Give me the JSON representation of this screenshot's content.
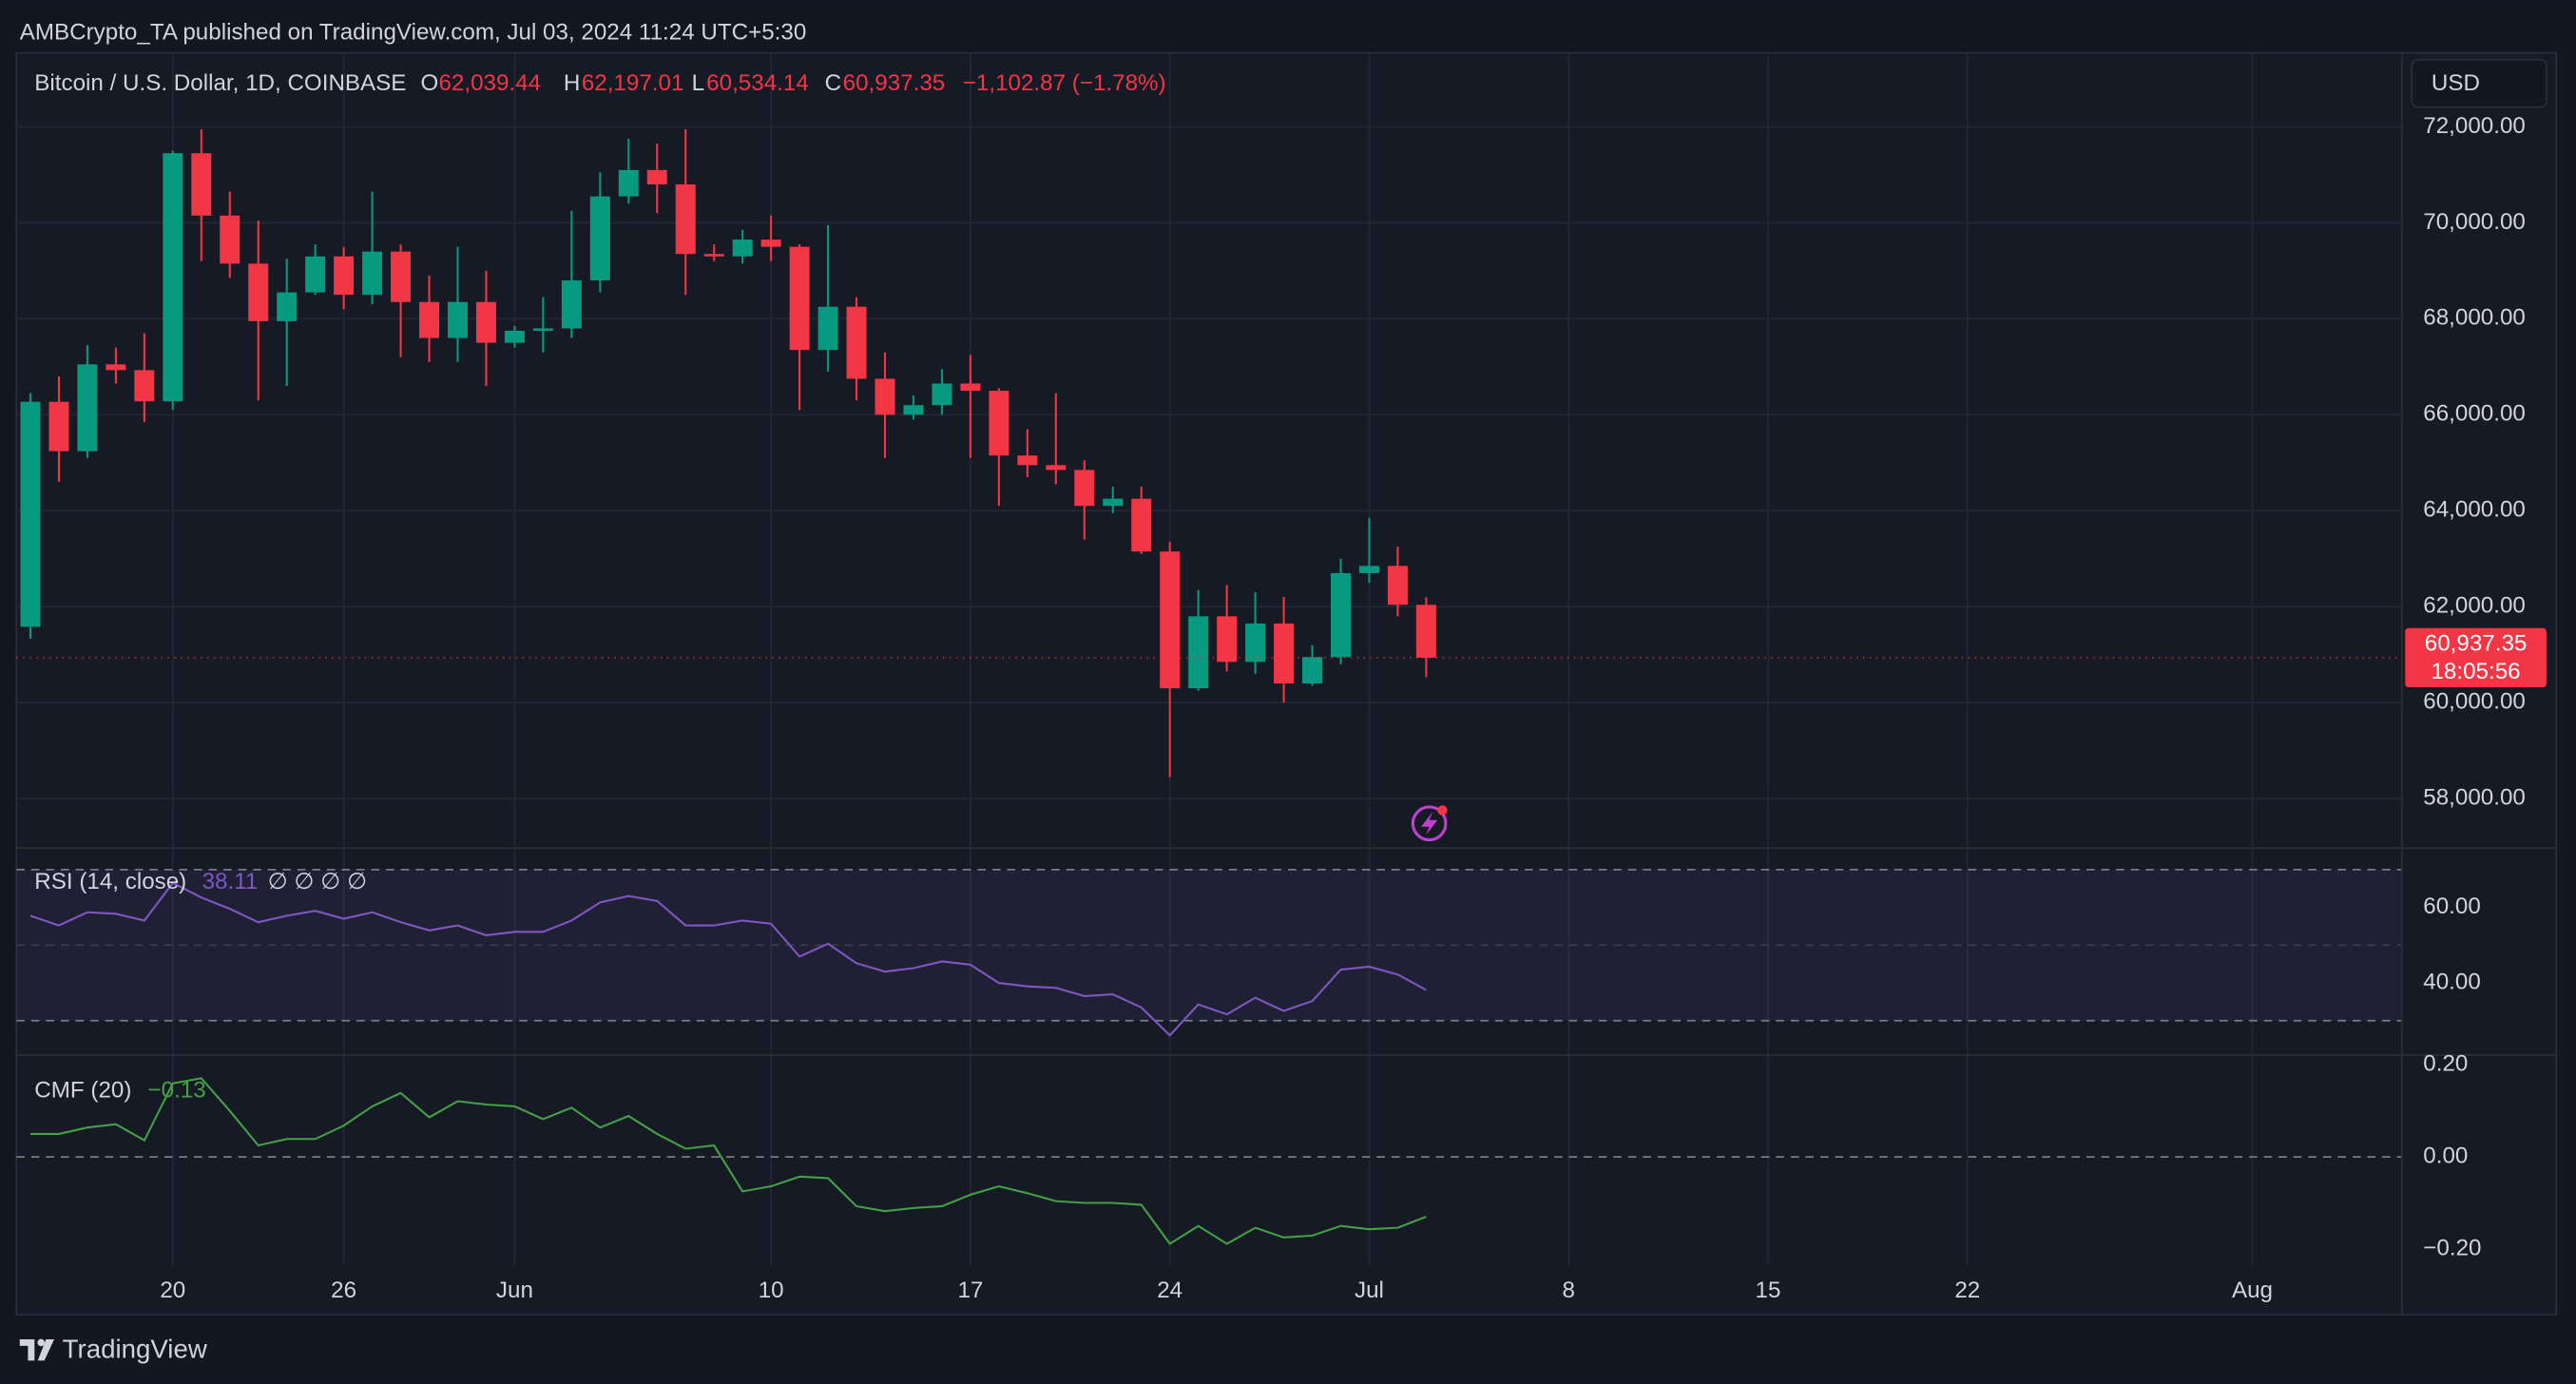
{
  "publisher": "AMBCrypto_TA published on TradingView.com, Jul 03, 2024 11:24 UTC+5:30",
  "brand": "TradingView",
  "currency": "USD",
  "last_price_label": "60,937.35",
  "countdown": "18:05:56",
  "chart_data": [
    {
      "type": "candlestick",
      "title": "Bitcoin / U.S. Dollar, 1D, COINBASE",
      "ohlc_legend": [
        {
          "label": "O",
          "value": "62,039.44"
        },
        {
          "label": "H",
          "value": "62,197.01"
        },
        {
          "label": "L",
          "value": "60,534.14"
        },
        {
          "label": "C",
          "value": "60,937.35"
        }
      ],
      "change": "−1,102.87 (−1.78%)",
      "up_color": "#089981",
      "down_color": "#f23645",
      "x": [
        "2024-05-15",
        "2024-05-16",
        "2024-05-17",
        "2024-05-18",
        "2024-05-19",
        "2024-05-20",
        "2024-05-21",
        "2024-05-22",
        "2024-05-23",
        "2024-05-24",
        "2024-05-25",
        "2024-05-26",
        "2024-05-27",
        "2024-05-28",
        "2024-05-29",
        "2024-05-30",
        "2024-05-31",
        "2024-06-01",
        "2024-06-02",
        "2024-06-03",
        "2024-06-04",
        "2024-06-05",
        "2024-06-06",
        "2024-06-07",
        "2024-06-08",
        "2024-06-09",
        "2024-06-10",
        "2024-06-11",
        "2024-06-12",
        "2024-06-13",
        "2024-06-14",
        "2024-06-15",
        "2024-06-16",
        "2024-06-17",
        "2024-06-18",
        "2024-06-19",
        "2024-06-20",
        "2024-06-21",
        "2024-06-22",
        "2024-06-23",
        "2024-06-24",
        "2024-06-25",
        "2024-06-26",
        "2024-06-27",
        "2024-06-28",
        "2024-06-29",
        "2024-06-30",
        "2024-07-01",
        "2024-07-02",
        "2024-07-03"
      ],
      "open": [
        61580,
        66270,
        65240,
        67050,
        66930,
        66280,
        71450,
        70150,
        69150,
        67950,
        68550,
        69300,
        68500,
        69400,
        68350,
        67600,
        68350,
        67500,
        67750,
        67800,
        68800,
        70550,
        71100,
        70800,
        69350,
        69300,
        69650,
        69500,
        67350,
        68250,
        66750,
        66000,
        66200,
        66650,
        66500,
        65150,
        64950,
        64850,
        64100,
        64250,
        63150,
        60300,
        61800,
        60850,
        61650,
        60400,
        60950,
        62700,
        62850,
        62039.44
      ],
      "high": [
        66450,
        66800,
        67450,
        67400,
        67700,
        71500,
        71950,
        70650,
        70050,
        69250,
        69550,
        69500,
        70650,
        69550,
        68900,
        69500,
        69000,
        67850,
        68450,
        70250,
        71050,
        71750,
        71650,
        71950,
        69550,
        69850,
        70150,
        69550,
        69950,
        68450,
        67300,
        66400,
        66950,
        67250,
        66550,
        65700,
        66450,
        65050,
        64500,
        64500,
        63350,
        62350,
        62450,
        62300,
        62200,
        61200,
        63000,
        63850,
        63250,
        62197.01
      ],
      "low": [
        61330,
        64600,
        65100,
        66650,
        65850,
        66100,
        69200,
        68850,
        66300,
        66600,
        68500,
        68200,
        68300,
        67200,
        67100,
        67100,
        66600,
        67400,
        67300,
        67600,
        68550,
        70400,
        70200,
        68500,
        69200,
        69150,
        69200,
        66100,
        66900,
        66300,
        65100,
        65900,
        66000,
        65100,
        64100,
        64700,
        64550,
        63400,
        63950,
        63100,
        58450,
        60250,
        60650,
        60600,
        60000,
        60350,
        60800,
        62500,
        61800,
        60534.14
      ],
      "close": [
        66270,
        65240,
        67050,
        66930,
        66280,
        71450,
        70150,
        69150,
        67950,
        68550,
        69300,
        68500,
        69400,
        68350,
        67600,
        68350,
        67500,
        67750,
        67800,
        68800,
        70550,
        71100,
        70800,
        69350,
        69300,
        69650,
        69500,
        67350,
        68250,
        66750,
        66000,
        66200,
        66650,
        66500,
        65150,
        64950,
        64850,
        64100,
        64250,
        63150,
        60300,
        61800,
        60850,
        61650,
        60400,
        60950,
        62700,
        62850,
        62039.44,
        60937.35
      ],
      "xlim": [
        "2024-05-14T15:00:00Z",
        "2024-08-06T06:00:00Z"
      ],
      "xticks": [
        {
          "value": "2024-05-20",
          "label": "20"
        },
        {
          "value": "2024-05-26",
          "label": "26"
        },
        {
          "value": "2024-06-01",
          "label": "Jun"
        },
        {
          "value": "2024-06-10",
          "label": "10"
        },
        {
          "value": "2024-06-17",
          "label": "17"
        },
        {
          "value": "2024-06-24",
          "label": "24"
        },
        {
          "value": "2024-07-01",
          "label": "Jul"
        },
        {
          "value": "2024-07-08",
          "label": "8"
        },
        {
          "value": "2024-07-15",
          "label": "15"
        },
        {
          "value": "2024-07-22",
          "label": "22"
        },
        {
          "value": "2024-08-01",
          "label": "Aug"
        }
      ],
      "ylim": [
        56970,
        73540
      ],
      "yticks": [
        {
          "value": 58000,
          "label": "58,000.00"
        },
        {
          "value": 60000,
          "label": "60,000.00"
        },
        {
          "value": 62000,
          "label": "62,000.00"
        },
        {
          "value": 64000,
          "label": "64,000.00"
        },
        {
          "value": 66000,
          "label": "66,000.00"
        },
        {
          "value": 68000,
          "label": "68,000.00"
        },
        {
          "value": 70000,
          "label": "70,000.00"
        },
        {
          "value": 72000,
          "label": "72,000.00"
        }
      ],
      "grid": true
    },
    {
      "type": "line",
      "series": [
        {
          "name": "RSI (14, close)",
          "color": "#7e57c2",
          "last_label": "38.11",
          "values": [
            57.8,
            55.2,
            58.7,
            58.3,
            56.5,
            66.5,
            62.6,
            59.6,
            56.1,
            57.8,
            59.1,
            57,
            58.7,
            56.1,
            53.9,
            55.2,
            52.6,
            53.5,
            53.5,
            56.5,
            61.3,
            63,
            61.7,
            55.2,
            55.2,
            56.5,
            55.7,
            47,
            50.4,
            45.2,
            43,
            43.9,
            45.7,
            44.8,
            40,
            39.1,
            38.7,
            36.5,
            37,
            33.5,
            26.1,
            34.3,
            31.7,
            36.1,
            32.6,
            35.2,
            43.5,
            44.3,
            42.2,
            38.11
          ]
        }
      ],
      "flags": "∅ ∅ ∅ ∅",
      "levels": [
        70,
        50,
        30
      ],
      "ylim": [
        20.9,
        75.7
      ],
      "yticks": [
        {
          "value": 40,
          "label": "40.00"
        },
        {
          "value": 60,
          "label": "60.00"
        }
      ]
    },
    {
      "type": "line",
      "series": [
        {
          "name": "CMF (20)",
          "color": "#43a047",
          "last_label": "−0.13",
          "values": [
            0.05,
            0.05,
            0.064,
            0.071,
            0.036,
            0.16,
            0.171,
            0.1,
            0.025,
            0.039,
            0.039,
            0.068,
            0.11,
            0.139,
            0.086,
            0.121,
            0.114,
            0.11,
            0.082,
            0.107,
            0.064,
            0.089,
            0.05,
            0.018,
            0.025,
            -0.075,
            -0.064,
            -0.043,
            -0.046,
            -0.107,
            -0.118,
            -0.111,
            -0.107,
            -0.082,
            -0.064,
            -0.079,
            -0.096,
            -0.1,
            -0.1,
            -0.104,
            -0.189,
            -0.15,
            -0.189,
            -0.154,
            -0.175,
            -0.171,
            -0.15,
            -0.157,
            -0.154,
            -0.13
          ]
        }
      ],
      "levels": [
        0
      ],
      "ylim": [
        -0.2357,
        0.2214
      ],
      "yticks": [
        {
          "value": 0.2,
          "label": "0.20"
        },
        {
          "value": 0,
          "label": "0.00"
        },
        {
          "value": -0.2,
          "label": "−0.20"
        }
      ]
    }
  ]
}
